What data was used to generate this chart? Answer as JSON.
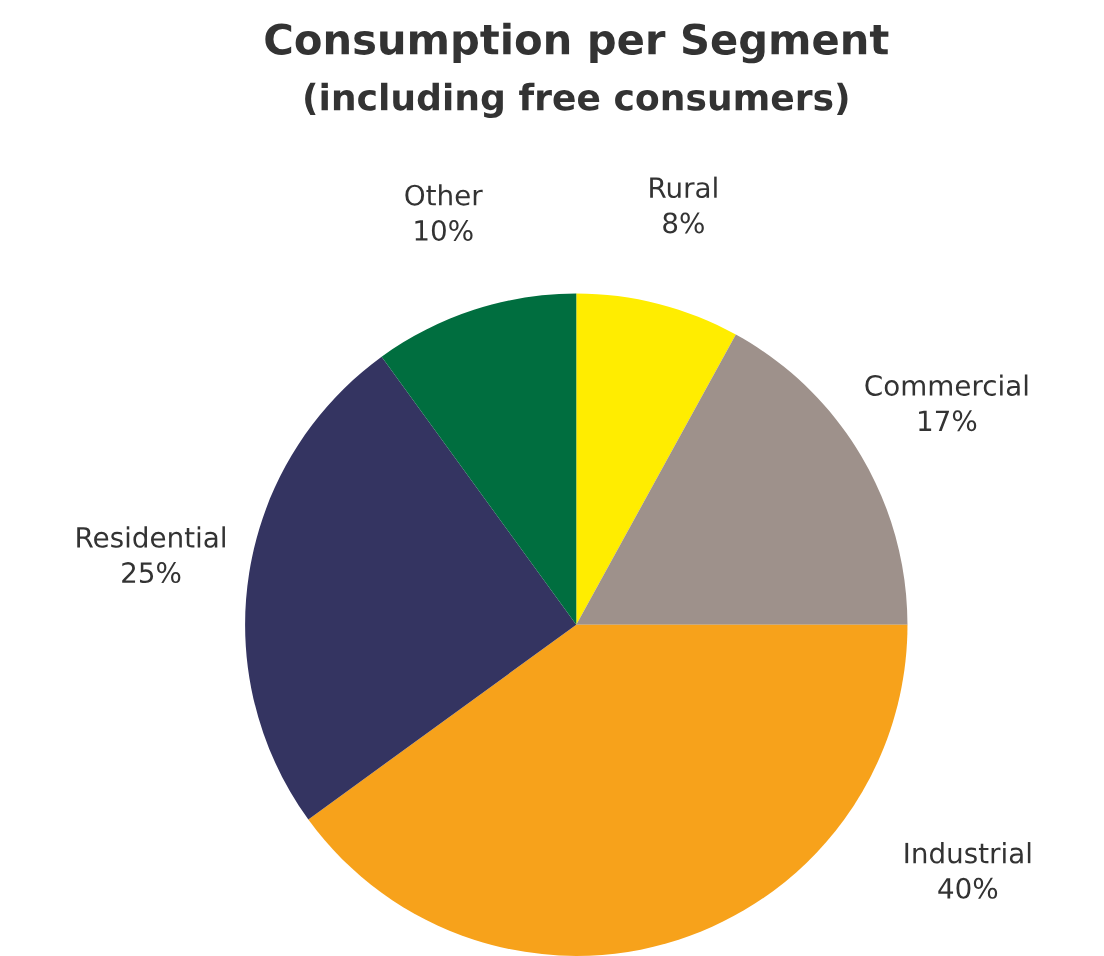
{
  "chart_data": {
    "type": "pie",
    "title": "Consumption per Segment",
    "subtitle": "(including free consumers)",
    "categories": [
      "Rural",
      "Commercial",
      "Industrial",
      "Residential",
      "Other"
    ],
    "values": [
      8,
      17,
      40,
      25,
      10
    ],
    "value_labels": [
      "8%",
      "17%",
      "40%",
      "25%",
      "10%"
    ],
    "colors": [
      "#ffed00",
      "#9e918b",
      "#f7a21b",
      "#343461",
      "#006e3f"
    ],
    "legend": false
  }
}
